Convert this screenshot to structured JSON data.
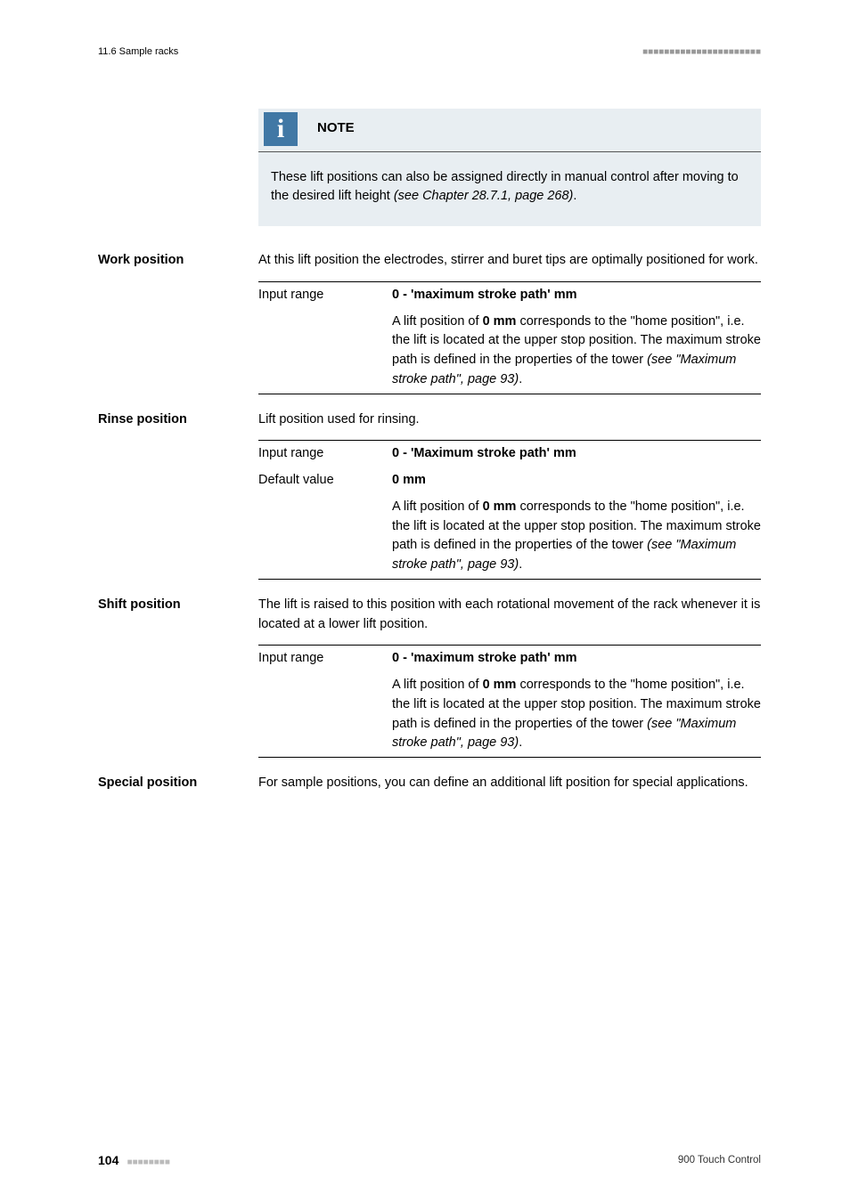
{
  "header": {
    "section_ref": "11.6 Sample racks",
    "dashes": "■■■■■■■■■■■■■■■■■■■■■■"
  },
  "note": {
    "title": "NOTE",
    "body_pre": "These lift positions can also be assigned directly in manual control after moving to the desired lift height ",
    "body_ref": "(see Chapter 28.7.1, page 268)",
    "body_post": "."
  },
  "sections": {
    "work": {
      "label": "Work position",
      "intro": "At this lift position the electrodes, stirrer and buret tips are optimally positioned for work.",
      "input_label": "Input range",
      "range_bold": "0 - 'maximum stroke path' mm",
      "desc_pre": "A lift position of ",
      "desc_bold": "0 mm",
      "desc_mid": " corresponds to the \"home position\", i.e. the lift is located at the upper stop position. The maximum stroke path is defined in the properties of the tower ",
      "desc_ref": "(see \"Maximum stroke path\", page 93)",
      "desc_post": "."
    },
    "rinse": {
      "label": "Rinse position",
      "intro": "Lift position used for rinsing.",
      "input_label": "Input range",
      "range_bold": "0 - 'Maximum stroke path' mm",
      "default_label": "Default value",
      "default_value": "0 mm",
      "desc_pre": "A lift position of ",
      "desc_bold": "0 mm",
      "desc_mid": " corresponds to the \"home position\", i.e. the lift is located at the upper stop position. The maximum stroke path is defined in the properties of the tower ",
      "desc_ref": "(see \"Maximum stroke path\", page 93)",
      "desc_post": "."
    },
    "shift": {
      "label": "Shift position",
      "intro": "The lift is raised to this position with each rotational movement of the rack whenever it is located at a lower lift position.",
      "input_label": "Input range",
      "range_bold": "0 - 'maximum stroke path' mm",
      "desc_pre": "A lift position of ",
      "desc_bold": "0 mm",
      "desc_mid": " corresponds to the \"home position\", i.e. the lift is located at the upper stop position. The maximum stroke path is defined in the properties of the tower ",
      "desc_ref": "(see \"Maximum stroke path\", page 93)",
      "desc_post": "."
    },
    "special": {
      "label": "Special position",
      "intro": "For sample positions, you can define an additional lift position for special applications."
    }
  },
  "footer": {
    "page": "104",
    "dashes": "■■■■■■■■",
    "product": "900 Touch Control"
  }
}
